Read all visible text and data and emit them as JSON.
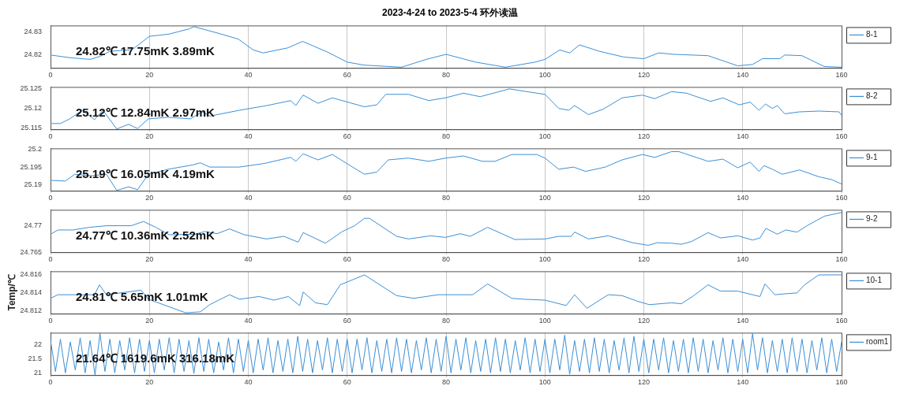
{
  "chart_data": [
    {
      "type": "line",
      "title": "2023-4-24 to 2023-5-4 环外读温",
      "annotations": [
        "24.82℃ 17.75mK 3.89mK"
      ],
      "xlim": [
        0,
        160
      ],
      "xticks": [
        0,
        20,
        40,
        60,
        80,
        100,
        120,
        140,
        160
      ],
      "ylim": [
        24.8144,
        24.8328
      ],
      "yticks": [
        24.82,
        24.83
      ],
      "grid": "x",
      "legend": "top right",
      "marker": "none",
      "series": [
        {
          "name": "8-1",
          "color": "#3b8fd6",
          "x": [
            0,
            4,
            8,
            10,
            12,
            16,
            17,
            20,
            24,
            28,
            29,
            34,
            38,
            41,
            43,
            48,
            51,
            56,
            60,
            63.5,
            71,
            76,
            80,
            86,
            92,
            98,
            100,
            103,
            105,
            107,
            111,
            116,
            120,
            123,
            126,
            133,
            139,
            142,
            144,
            147.5,
            148.5,
            152,
            156.5,
            160
          ],
          "values": [
            24.82,
            24.8188,
            24.8181,
            24.8194,
            24.8216,
            24.8222,
            24.8231,
            24.8281,
            24.8291,
            24.8313,
            24.8323,
            24.8294,
            24.8269,
            24.8222,
            24.8209,
            24.8231,
            24.8259,
            24.8213,
            24.8169,
            24.8156,
            24.8147,
            24.8181,
            24.8203,
            24.8169,
            24.8147,
            24.8169,
            24.8181,
            24.8222,
            24.8209,
            24.8244,
            24.8216,
            24.8191,
            24.8184,
            24.8209,
            24.8203,
            24.8197,
            24.8153,
            24.8159,
            24.8184,
            24.8184,
            24.82,
            24.8197,
            24.815,
            24.8147
          ]
        }
      ]
    },
    {
      "type": "line",
      "annotations": [
        "25.12℃ 12.84mK 2.97mK"
      ],
      "xlim": [
        0,
        160
      ],
      "xticks": [
        0,
        20,
        40,
        60,
        80,
        100,
        120,
        140,
        160
      ],
      "ylim": [
        25.1146,
        25.1255
      ],
      "yticks": [
        25.115,
        25.12,
        25.125
      ],
      "grid": "x",
      "legend": "top right",
      "marker": "none",
      "series": [
        {
          "name": "8-2",
          "color": "#3b8fd6",
          "x": [
            0,
            2,
            3.9,
            6.4,
            8.9,
            10.6,
            13.4,
            15.8,
            17.6,
            19.8,
            23.8,
            28.3,
            30.7,
            32.2,
            38.2,
            43.7,
            48.6,
            49.6,
            51.1,
            54.1,
            57,
            63.5,
            66,
            67.8,
            72.4,
            76.5,
            79.9,
            83.5,
            86.9,
            92.8,
            98.4,
            100,
            102.8,
            104.8,
            106,
            108.8,
            111.8,
            115.6,
            119.7,
            122.2,
            125.6,
            128.6,
            133.5,
            136,
            139.3,
            141.5,
            143.3,
            144.6,
            146,
            147,
            148.5,
            151.5,
            155.4,
            159.5,
            160
          ],
          "values": [
            25.1161,
            25.1161,
            25.1173,
            25.1195,
            25.1171,
            25.1195,
            25.1147,
            25.1159,
            25.1148,
            25.1173,
            25.1177,
            25.1173,
            25.1191,
            25.118,
            25.1195,
            25.1207,
            25.122,
            25.1207,
            25.1234,
            25.1213,
            25.1227,
            25.1204,
            25.1209,
            25.1236,
            25.1236,
            25.122,
            25.1227,
            25.1239,
            25.123,
            25.125,
            25.1239,
            25.1236,
            25.12,
            25.1195,
            25.1207,
            25.1184,
            25.1198,
            25.1227,
            25.1234,
            25.1225,
            25.1243,
            25.1239,
            25.1218,
            25.1227,
            25.1209,
            25.1216,
            25.1195,
            25.1211,
            25.12,
            25.1207,
            25.1186,
            25.1191,
            25.1193,
            25.1191,
            25.1182
          ]
        }
      ]
    },
    {
      "type": "line",
      "annotations": [
        "25.19℃ 16.05mK 4.19mK"
      ],
      "xlim": [
        0,
        160
      ],
      "xticks": [
        0,
        20,
        40,
        60,
        80,
        100,
        120,
        140,
        160
      ],
      "ylim": [
        25.1884,
        25.2002
      ],
      "yticks": [
        25.19,
        25.195,
        25.2
      ],
      "grid": "x",
      "legend": "top right",
      "marker": "none",
      "series": [
        {
          "name": "9-1",
          "color": "#3b8fd6",
          "x": [
            0,
            3,
            4.9,
            8.3,
            11.3,
            13.4,
            15.8,
            17.6,
            19.8,
            23.8,
            28.8,
            30.3,
            32.2,
            38.2,
            43.2,
            48.6,
            49.6,
            51.1,
            54.1,
            57,
            61.1,
            63.5,
            66,
            68.3,
            72.4,
            76.5,
            79.9,
            83.5,
            87.4,
            89.9,
            93.3,
            98.4,
            100,
            102.8,
            105.8,
            108.2,
            112.2,
            115.6,
            119.7,
            122.2,
            125.6,
            127.1,
            133,
            136,
            139,
            141.5,
            143.3,
            144.3,
            146,
            148,
            151.5,
            155.4,
            158,
            160
          ],
          "values": [
            25.1913,
            25.1911,
            25.193,
            25.1926,
            25.193,
            25.1885,
            25.1895,
            25.1887,
            25.193,
            25.1944,
            25.1956,
            25.1962,
            25.195,
            25.195,
            25.196,
            25.1977,
            25.1966,
            25.1987,
            25.197,
            25.1985,
            25.195,
            25.193,
            25.1936,
            25.197,
            25.1975,
            25.1966,
            25.1975,
            25.1981,
            25.1966,
            25.1966,
            25.1985,
            25.1985,
            25.1975,
            25.1944,
            25.195,
            25.1938,
            25.195,
            25.197,
            25.1985,
            25.1977,
            25.1993,
            25.1993,
            25.1966,
            25.1972,
            25.1948,
            25.1964,
            25.1938,
            25.1954,
            25.1944,
            25.193,
            25.1942,
            25.1923,
            25.1915,
            25.1903
          ]
        }
      ]
    },
    {
      "type": "line",
      "annotations": [
        "24.77℃ 10.36mK 2.52mK"
      ],
      "xlim": [
        0,
        160
      ],
      "xticks": [
        0,
        20,
        40,
        60,
        80,
        100,
        120,
        140,
        160
      ],
      "ylim": [
        24.765,
        24.773
      ],
      "yticks": [
        24.765,
        24.77
      ],
      "grid": "x",
      "legend": "top right",
      "marker": "none",
      "series": [
        {
          "name": "9-2",
          "color": "#3b8fd6",
          "x": [
            0,
            1.5,
            4.5,
            7.9,
            11.3,
            16.3,
            18.8,
            21.3,
            24,
            29.2,
            31.2,
            33.7,
            36.2,
            39.2,
            43.7,
            47.2,
            50.1,
            51.1,
            55.6,
            59,
            61.5,
            63.5,
            64.5,
            70,
            72.4,
            76.9,
            79.9,
            82.9,
            84.9,
            88.4,
            93.9,
            100,
            102.8,
            105.3,
            106,
            108.8,
            112.8,
            117.7,
            120.9,
            122.7,
            125.6,
            127.6,
            129.6,
            133,
            135.5,
            139,
            142,
            143.5,
            144.7,
            147,
            148.7,
            151,
            153,
            156.5,
            160
          ],
          "values": [
            24.7684,
            24.7692,
            24.7692,
            24.7697,
            24.77,
            24.77,
            24.7708,
            24.7697,
            24.7683,
            24.7684,
            24.7689,
            24.7685,
            24.7694,
            24.7683,
            24.7675,
            24.768,
            24.7669,
            24.7687,
            24.7667,
            24.7689,
            24.77,
            24.7714,
            24.7714,
            24.768,
            24.7675,
            24.7681,
            24.7678,
            24.7685,
            24.768,
            24.7697,
            24.7674,
            24.7675,
            24.768,
            24.768,
            24.7688,
            24.7675,
            24.7681,
            24.7668,
            24.7663,
            24.7668,
            24.7667,
            24.7665,
            24.767,
            24.7687,
            24.7677,
            24.7681,
            24.7673,
            24.7677,
            24.7695,
            24.7684,
            24.7692,
            24.7688,
            24.77,
            24.7718,
            24.7725
          ]
        }
      ]
    },
    {
      "type": "line",
      "ylabel": "Temp/℃",
      "annotations": [
        "24.81℃ 5.65mK 1.01mK"
      ],
      "xlim": [
        0,
        160
      ],
      "xticks": [
        0,
        20,
        40,
        60,
        80,
        100,
        120,
        140,
        160
      ],
      "ylim": [
        24.8117,
        24.8164
      ],
      "yticks": [
        24.812,
        24.814,
        24.816
      ],
      "grid": "x",
      "legend": "top right",
      "marker": "none",
      "series": [
        {
          "name": "10-1",
          "color": "#3b8fd6",
          "x": [
            0,
            1.5,
            6.4,
            8.9,
            9.9,
            11.3,
            18.3,
            19.8,
            23.8,
            27.3,
            30.3,
            32.2,
            36.2,
            38.2,
            42.2,
            45.2,
            48.1,
            50.4,
            51.1,
            53.6,
            56,
            58.6,
            63.5,
            70,
            73.5,
            78.4,
            85.4,
            88.4,
            93.3,
            95.8,
            100,
            104.3,
            106,
            108.5,
            112.8,
            115.6,
            118.6,
            121.1,
            125.6,
            127.6,
            130.1,
            133,
            135.5,
            139,
            143.5,
            144.5,
            146.5,
            148.5,
            151,
            152.5,
            155.4,
            160
          ],
          "values": [
            24.8134,
            24.8138,
            24.8138,
            24.8138,
            24.8149,
            24.8138,
            24.8143,
            24.8133,
            24.8125,
            24.8118,
            24.8119,
            24.8127,
            24.8138,
            24.8133,
            24.8136,
            24.8132,
            24.8136,
            24.8126,
            24.8141,
            24.8129,
            24.8127,
            24.8149,
            24.816,
            24.8137,
            24.8134,
            24.8138,
            24.8138,
            24.815,
            24.8134,
            24.8133,
            24.8132,
            24.8126,
            24.8138,
            24.8123,
            24.8138,
            24.8137,
            24.8131,
            24.8127,
            24.8129,
            24.8128,
            24.8137,
            24.8149,
            24.8142,
            24.8142,
            24.8136,
            24.815,
            24.8138,
            24.8139,
            24.814,
            24.8149,
            24.816,
            24.816
          ]
        }
      ]
    },
    {
      "type": "line",
      "annotations": [
        "21.64℃ 1619.6mK 316.18mK"
      ],
      "xlim": [
        0,
        160
      ],
      "xticks": [
        0,
        20,
        40,
        60,
        80,
        100,
        120,
        140,
        160
      ],
      "ylim": [
        20.92,
        22.43
      ],
      "yticks": [
        21,
        21.5,
        22
      ],
      "grid": "x",
      "legend": "top right",
      "marker": "none",
      "series": [
        {
          "name": "room1",
          "color": "#3b8fd6",
          "x": [
            0,
            1,
            2,
            3,
            4,
            5,
            6,
            7,
            8,
            9,
            10,
            11,
            12,
            13,
            14,
            15,
            16,
            17,
            18,
            19,
            20,
            21,
            22,
            23,
            24,
            25,
            26,
            27,
            28,
            29,
            30,
            31,
            32,
            33,
            34,
            35,
            36,
            37,
            38,
            39,
            40,
            41,
            42,
            43,
            44,
            45,
            46,
            47,
            48,
            49,
            50,
            51,
            52,
            53,
            54,
            55,
            56,
            57,
            58,
            59,
            60,
            61,
            62,
            63,
            64,
            65,
            66,
            67,
            68,
            69,
            70,
            71,
            72,
            73,
            74,
            75,
            76,
            77,
            78,
            79,
            80,
            81,
            82,
            83,
            84,
            85,
            86,
            87,
            88,
            89,
            90,
            91,
            92,
            93,
            94,
            95,
            96,
            97,
            98,
            99,
            100,
            101,
            102,
            103,
            104,
            105,
            106,
            107,
            108,
            109,
            110,
            111,
            112,
            113,
            114,
            115,
            116,
            117,
            118,
            119,
            120,
            121,
            122,
            123,
            124,
            125,
            126,
            127,
            128,
            129,
            130,
            131,
            132,
            133,
            134,
            135,
            136,
            137,
            138,
            139,
            140,
            141,
            142,
            143,
            144,
            145,
            146,
            147,
            148,
            149,
            150,
            151,
            152,
            153,
            154,
            155,
            156,
            157,
            158,
            159,
            160
          ],
          "values": [
            22.15,
            21.05,
            22.2,
            21.0,
            22.1,
            21.1,
            22.25,
            21.0,
            22.15,
            20.93,
            22.41,
            21.05,
            22.2,
            21.0,
            22.15,
            21.1,
            22.25,
            21.0,
            22.2,
            21.05,
            22.15,
            21.0,
            22.2,
            21.1,
            22.25,
            21.0,
            22.2,
            21.05,
            22.15,
            20.98,
            22.25,
            21.05,
            22.2,
            21.0,
            22.1,
            21.1,
            22.25,
            21.0,
            22.2,
            21.05,
            22.15,
            21.0,
            22.2,
            21.1,
            22.25,
            21.0,
            22.15,
            21.05,
            22.2,
            21.0,
            22.3,
            21.05,
            22.2,
            21.0,
            22.15,
            21.1,
            22.25,
            21.0,
            22.2,
            21.05,
            22.2,
            21.0,
            22.2,
            21.1,
            22.25,
            21.0,
            22.15,
            21.05,
            22.2,
            21.0,
            22.25,
            21.05,
            22.2,
            21.0,
            22.15,
            21.1,
            22.25,
            21.0,
            22.2,
            21.05,
            22.3,
            21.0,
            22.2,
            21.1,
            22.25,
            21.0,
            22.15,
            21.05,
            22.2,
            21.0,
            22.25,
            21.05,
            22.2,
            21.0,
            22.15,
            21.1,
            22.25,
            21.0,
            22.2,
            21.05,
            22.2,
            21.0,
            22.2,
            21.1,
            22.34,
            20.95,
            22.15,
            21.05,
            22.2,
            21.0,
            22.25,
            21.05,
            22.2,
            21.0,
            22.15,
            21.1,
            22.25,
            21.0,
            22.3,
            21.05,
            22.2,
            21.0,
            22.2,
            21.1,
            22.25,
            21.0,
            22.15,
            21.05,
            22.2,
            21.0,
            22.25,
            21.05,
            22.2,
            21.0,
            22.15,
            21.1,
            22.25,
            21.0,
            22.2,
            21.05,
            22.2,
            21.0,
            22.4,
            21.1,
            22.25,
            21.0,
            22.15,
            21.05,
            22.2,
            21.0,
            22.25,
            21.05,
            22.2,
            21.0,
            22.15,
            21.1,
            22.25,
            21.0,
            22.2,
            21.05,
            22.1
          ]
        }
      ]
    }
  ]
}
